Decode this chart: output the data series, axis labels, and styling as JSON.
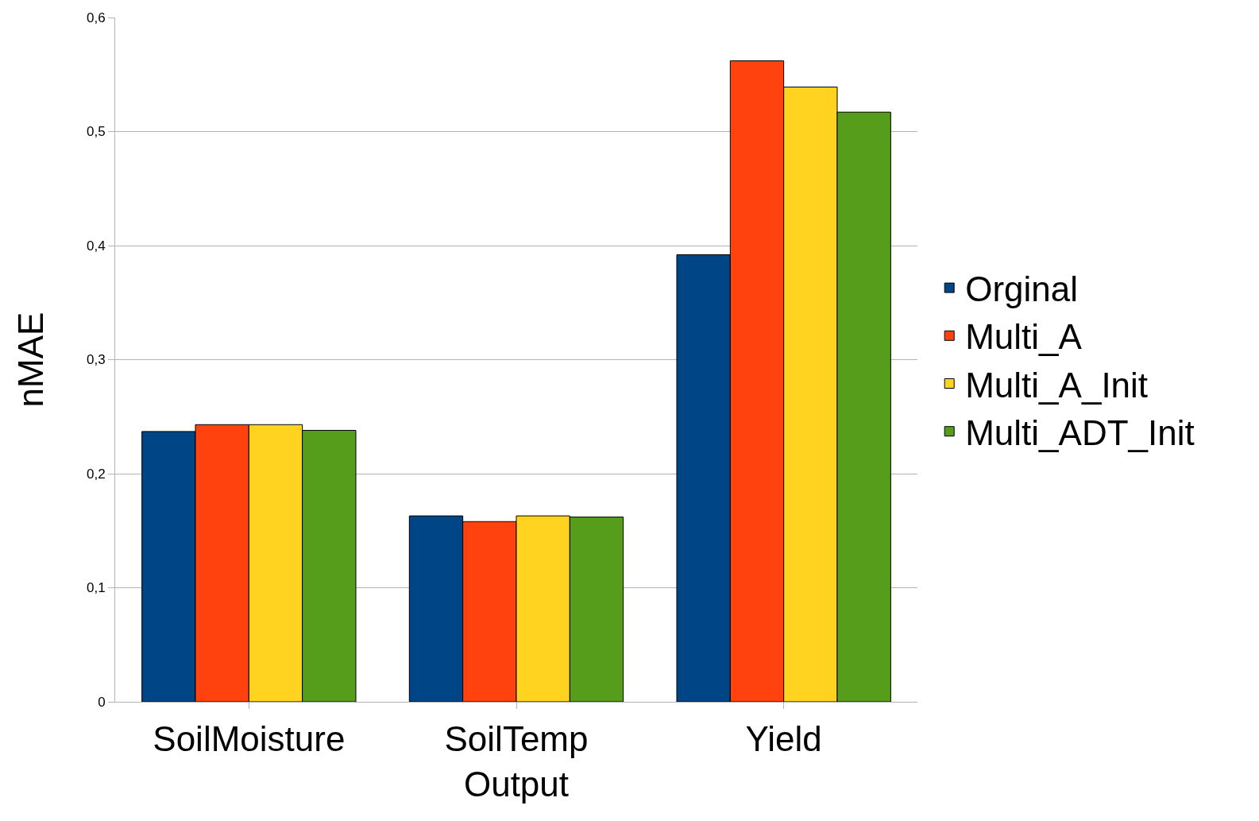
{
  "chart_data": {
    "type": "bar",
    "xlabel": "Output",
    "ylabel": "nMAE",
    "categories": [
      "SoilMoisture",
      "SoilTemp",
      "Yield"
    ],
    "series": [
      {
        "name": "Orginal",
        "color": "#004586",
        "values": [
          0.237,
          0.163,
          0.392
        ]
      },
      {
        "name": "Multi_A",
        "color": "#ff420e",
        "values": [
          0.243,
          0.158,
          0.562
        ]
      },
      {
        "name": "Multi_A_Init",
        "color": "#ffd320",
        "values": [
          0.243,
          0.163,
          0.539
        ]
      },
      {
        "name": "Multi_ADT_Init",
        "color": "#579d1c",
        "values": [
          0.238,
          0.162,
          0.517
        ]
      }
    ],
    "ylim": [
      0,
      0.6
    ],
    "yticks": [
      0,
      {
        "value": 0.1,
        "label": "0,1"
      },
      {
        "value": 0.2,
        "label": "0,2"
      },
      {
        "value": 0.3,
        "label": "0,3"
      },
      {
        "value": 0.4,
        "label": "0,4"
      },
      {
        "value": 0.5,
        "label": "0,5"
      },
      {
        "value": 0.6,
        "label": "0,6"
      }
    ],
    "grid": "y",
    "legend": "right"
  }
}
